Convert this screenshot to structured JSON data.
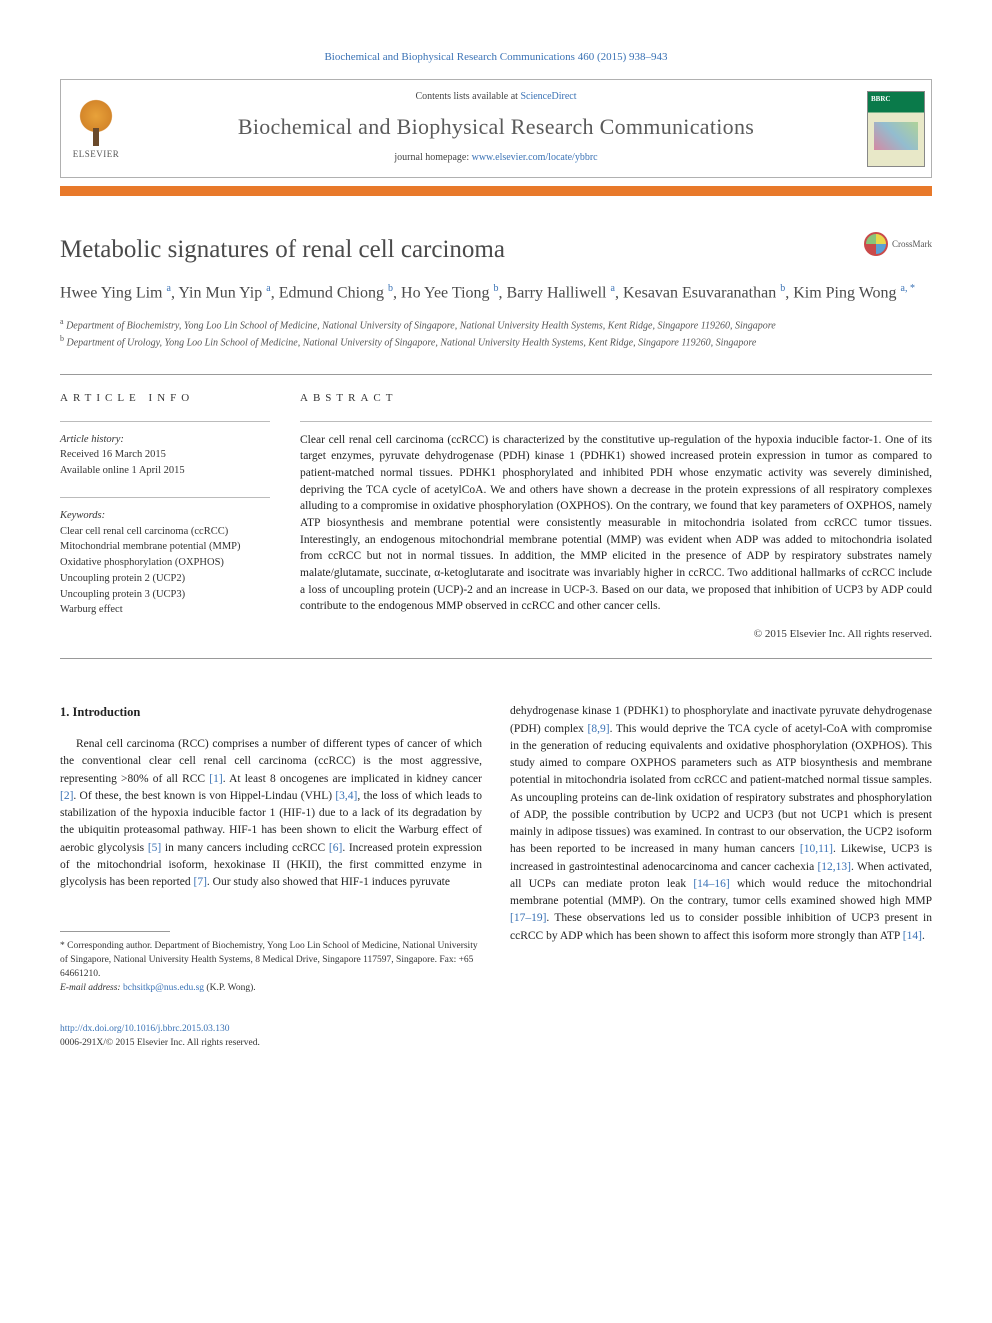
{
  "citation": "Biochemical and Biophysical Research Communications 460 (2015) 938–943",
  "header": {
    "contents_prefix": "Contents lists available at ",
    "contents_link": "ScienceDirect",
    "journal_name": "Biochemical and Biophysical Research Communications",
    "homepage_prefix": "journal homepage: ",
    "homepage_url": "www.elsevier.com/locate/ybbrc",
    "publisher": "ELSEVIER",
    "cover_label": "BBRC"
  },
  "colors": {
    "link": "#3a72b5",
    "accent_bar": "#e8792a",
    "text": "#1a1a1a",
    "muted": "#4a4a4a",
    "cover_green": "#0a7a4a"
  },
  "article": {
    "title": "Metabolic signatures of renal cell carcinoma",
    "crossmark": "CrossMark",
    "authors_html": "Hwee Ying Lim <sup>a</sup>, Yin Mun Yip <sup>a</sup>, Edmund Chiong <sup>b</sup>, Ho Yee Tiong <sup>b</sup>, Barry Halliwell <sup>a</sup>, Kesavan Esuvaranathan <sup>b</sup>, Kim Ping Wong <sup>a, *</sup>",
    "affiliations": {
      "a": "Department of Biochemistry, Yong Loo Lin School of Medicine, National University of Singapore, National University Health Systems, Kent Ridge, Singapore 119260, Singapore",
      "b": "Department of Urology, Yong Loo Lin School of Medicine, National University of Singapore, National University Health Systems, Kent Ridge, Singapore 119260, Singapore"
    }
  },
  "article_info": {
    "label": "ARTICLE INFO",
    "history_label": "Article history:",
    "received": "Received 16 March 2015",
    "online": "Available online 1 April 2015",
    "keywords_label": "Keywords:",
    "keywords": [
      "Clear cell renal cell carcinoma (ccRCC)",
      "Mitochondrial membrane potential (MMP)",
      "Oxidative phosphorylation (OXPHOS)",
      "Uncoupling protein 2 (UCP2)",
      "Uncoupling protein 3 (UCP3)",
      "Warburg effect"
    ]
  },
  "abstract": {
    "label": "ABSTRACT",
    "text": "Clear cell renal cell carcinoma (ccRCC) is characterized by the constitutive up-regulation of the hypoxia inducible factor-1. One of its target enzymes, pyruvate dehydrogenase (PDH) kinase 1 (PDHK1) showed increased protein expression in tumor as compared to patient-matched normal tissues. PDHK1 phosphorylated and inhibited PDH whose enzymatic activity was severely diminished, depriving the TCA cycle of acetylCoA. We and others have shown a decrease in the protein expressions of all respiratory complexes alluding to a compromise in oxidative phosphorylation (OXPHOS). On the contrary, we found that key parameters of OXPHOS, namely ATP biosynthesis and membrane potential were consistently measurable in mitochondria isolated from ccRCC tumor tissues. Interestingly, an endogenous mitochondrial membrane potential (MMP) was evident when ADP was added to mitochondria isolated from ccRCC but not in normal tissues. In addition, the MMP elicited in the presence of ADP by respiratory substrates namely malate/glutamate, succinate, α-ketoglutarate and isocitrate was invariably higher in ccRCC. Two additional hallmarks of ccRCC include a loss of uncoupling protein (UCP)-2 and an increase in UCP-3. Based on our data, we proposed that inhibition of UCP3 by ADP could contribute to the endogenous MMP observed in ccRCC and other cancer cells.",
    "copyright": "© 2015 Elsevier Inc. All rights reserved."
  },
  "body": {
    "intro_heading": "1. Introduction",
    "col1": "Renal cell carcinoma (RCC) comprises a number of different types of cancer of which the conventional clear cell renal cell carcinoma (ccRCC) is the most aggressive, representing >80% of all RCC [1]. At least 8 oncogenes are implicated in kidney cancer [2]. Of these, the best known is von Hippel-Lindau (VHL) [3,4], the loss of which leads to stabilization of the hypoxia inducible factor 1 (HIF-1) due to a lack of its degradation by the ubiquitin proteasomal pathway. HIF-1 has been shown to elicit the Warburg effect of aerobic glycolysis [5] in many cancers including ccRCC [6]. Increased protein expression of the mitochondrial isoform, hexokinase II (HKII), the first committed enzyme in glycolysis has been reported [7]. Our study also showed that HIF-1 induces pyruvate",
    "col1_refs": [
      "[1]",
      "[2]",
      "[3,4]",
      "[5]",
      "[6]",
      "[7]"
    ],
    "col2": "dehydrogenase kinase 1 (PDHK1) to phosphorylate and inactivate pyruvate dehydrogenase (PDH) complex [8,9]. This would deprive the TCA cycle of acetyl-CoA with compromise in the generation of reducing equivalents and oxidative phosphorylation (OXPHOS). This study aimed to compare OXPHOS parameters such as ATP biosynthesis and membrane potential in mitochondria isolated from ccRCC and patient-matched normal tissue samples. As uncoupling proteins can de-link oxidation of respiratory substrates and phosphorylation of ADP, the possible contribution by UCP2 and UCP3 (but not UCP1 which is present mainly in adipose tissues) was examined. In contrast to our observation, the UCP2 isoform has been reported to be increased in many human cancers [10,11]. Likewise, UCP3 is increased in gastrointestinal adenocarcinoma and cancer cachexia [12,13]. When activated, all UCPs can mediate proton leak [14–16] which would reduce the mitochondrial membrane potential (MMP). On the contrary, tumor cells examined showed high MMP [17–19]. These observations led us to consider possible inhibition of UCP3 present in ccRCC by ADP which has been shown to affect this isoform more strongly than ATP [14].",
    "col2_refs": [
      "[8,9]",
      "[10,11]",
      "[12,13]",
      "[14–16]",
      "[17–19]",
      "[14]"
    ]
  },
  "footnote": {
    "corresponding": "* Corresponding author. Department of Biochemistry, Yong Loo Lin School of Medicine, National University of Singapore, National University Health Systems, 8 Medical Drive, Singapore 117597, Singapore. Fax: +65 64661210.",
    "email_label": "E-mail address: ",
    "email": "bchsitkp@nus.edu.sg",
    "email_suffix": " (K.P. Wong)."
  },
  "bottom": {
    "doi": "http://dx.doi.org/10.1016/j.bbrc.2015.03.130",
    "issn": "0006-291X/© 2015 Elsevier Inc. All rights reserved."
  }
}
